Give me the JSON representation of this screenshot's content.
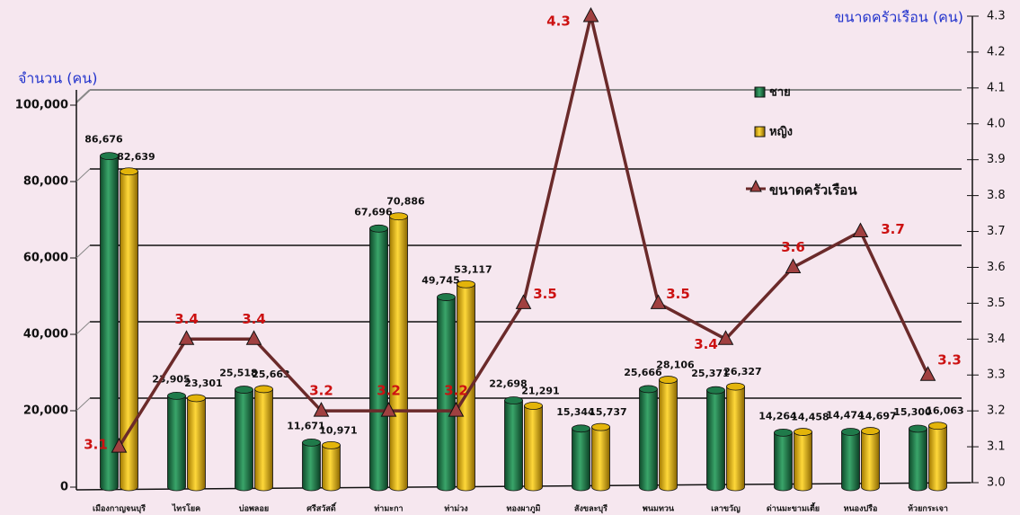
{
  "chart_data": {
    "type": "bar",
    "y_axis_label": "จำนวน (คน)",
    "y2_axis_label": "ขนาดครัวเรือน (คน)",
    "categories": [
      "เมืองกาญจนบุรี",
      "ไทรโยค",
      "บ่อพลอย",
      "ศรีสวัสดิ์",
      "ท่ามะกา",
      "ท่าม่วง",
      "ทองผาภูมิ",
      "สังขละบุรี",
      "พนมทวน",
      "เลาขวัญ",
      "ด่านมะขามเตี้ย",
      "หนองปรือ",
      "ห้วยกระเจา"
    ],
    "series": [
      {
        "name": "ชาย",
        "type": "bar",
        "color": "#1f7a4a",
        "values": [
          86676,
          23905,
          25518,
          11671,
          67696,
          49745,
          22698,
          15344,
          25666,
          25371,
          14264,
          14474,
          15300
        ],
        "value_labels": [
          "86,676",
          "23,905",
          "25,518",
          "11,671",
          "67,696",
          "49,745",
          "22,698",
          "15,344",
          "25,666",
          "25,371",
          "14,264",
          "14,474",
          "15,300"
        ]
      },
      {
        "name": "หญิง",
        "type": "bar",
        "color": "#e3b40a",
        "values": [
          82639,
          23301,
          25663,
          10971,
          70886,
          53117,
          21291,
          15737,
          28106,
          26327,
          14458,
          14697,
          16063
        ],
        "value_labels": [
          "82,639",
          "23,301",
          "25,663",
          "10,971",
          "70,886",
          "53,117",
          "21,291",
          "15,737",
          "28,106",
          "26,327",
          "14,458",
          "14,697",
          "16,063"
        ]
      },
      {
        "name": "ขนาดครัวเรือน",
        "type": "line",
        "axis": "y2",
        "color": "#6b2a2a",
        "marker_color": "#a04040",
        "label_color": "#cc1111",
        "values": [
          3.1,
          3.4,
          3.4,
          3.2,
          3.2,
          3.2,
          3.5,
          4.3,
          3.5,
          3.4,
          3.6,
          3.7,
          3.3
        ]
      }
    ],
    "ylim": [
      0,
      100000
    ],
    "yticks": [
      0,
      {
        "value": 20000,
        "label": "20,000"
      },
      {
        "value": 40000,
        "label": "40,000"
      },
      {
        "value": 60000,
        "label": "60,000"
      },
      {
        "value": 80000,
        "label": "80,000"
      },
      {
        "value": 100000,
        "label": "100,000"
      }
    ],
    "y2lim": [
      3,
      4.3
    ],
    "y2ticks": [
      {
        "value": 3,
        "label": "3.0"
      },
      3.1,
      3.2,
      3.3,
      3.4,
      3.5,
      3.6,
      3.7,
      3.8,
      3.9,
      {
        "value": 4,
        "label": "4.0"
      },
      4.1,
      4.2,
      4.3
    ],
    "grid": true,
    "legend": "upper right"
  }
}
